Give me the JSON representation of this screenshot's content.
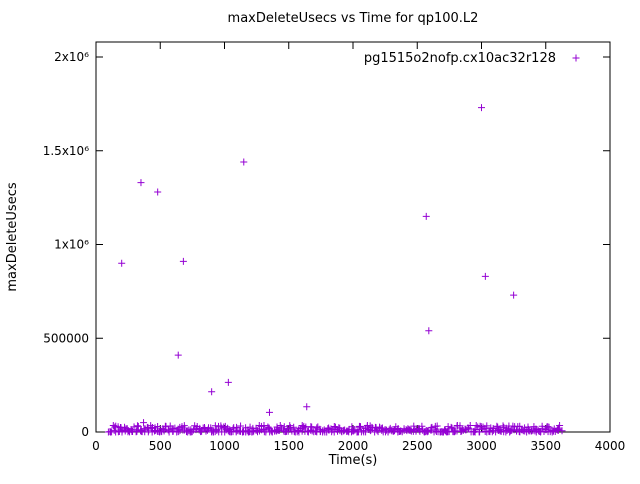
{
  "figure": {
    "background": "#ffffff",
    "border_color": "#000000",
    "text_color": "#000000"
  },
  "chart_data": {
    "type": "scatter",
    "title": "maxDeleteUsecs vs Time for qp100.L2",
    "xlabel": "Time(s)",
    "ylabel": "maxDeleteUsecs",
    "xlim": [
      0,
      4000
    ],
    "ylim": [
      0,
      2080000
    ],
    "grid": false,
    "legend_position": "top-right-inside",
    "xticks": {
      "values": [
        0,
        500,
        1000,
        1500,
        2000,
        2500,
        3000,
        3500,
        4000
      ],
      "labels": [
        "0",
        "500",
        "1000",
        "1500",
        "2000",
        "2500",
        "3000",
        "3500",
        "4000"
      ]
    },
    "yticks": {
      "values": [
        0,
        500000,
        1000000,
        1500000,
        2000000
      ],
      "labels": [
        "0",
        "500000",
        "1x10⁶",
        "1.5x10⁶",
        "2x10⁶"
      ]
    },
    "series": [
      {
        "name": "pg1515o2nofp.cx10ac32r128",
        "marker": "plus",
        "marker_size": 7,
        "color": "#9400d3",
        "outlier_points": [
          [
            200,
            900000
          ],
          [
            350,
            1330000
          ],
          [
            370,
            50000
          ],
          [
            480,
            1280000
          ],
          [
            640,
            410000
          ],
          [
            680,
            910000
          ],
          [
            900,
            215000
          ],
          [
            1030,
            265000
          ],
          [
            1150,
            1440000
          ],
          [
            1350,
            105000
          ],
          [
            1640,
            135000
          ],
          [
            2570,
            1150000
          ],
          [
            2590,
            540000
          ],
          [
            3000,
            1730000
          ],
          [
            3030,
            830000
          ],
          [
            3250,
            730000
          ]
        ],
        "baseline_band": {
          "x_min": 100,
          "x_max": 3620,
          "count": 480,
          "y_max": 35000,
          "seed": 42,
          "description": "dense cluster of points hugging y≈0 across the full time range"
        }
      }
    ]
  }
}
